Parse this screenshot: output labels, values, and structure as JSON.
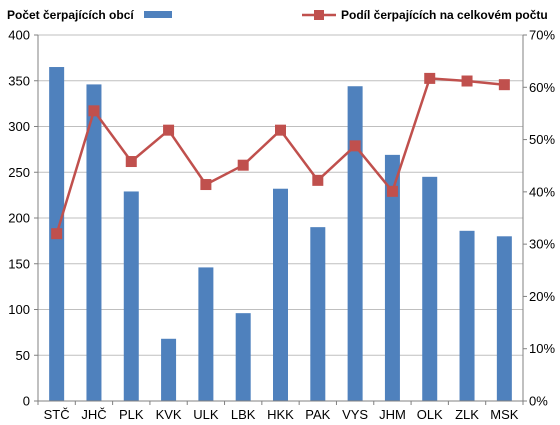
{
  "chart_data": {
    "type": "bar",
    "categories": [
      "STČ",
      "JHČ",
      "PLK",
      "KVK",
      "ULK",
      "LBK",
      "HKK",
      "PAK",
      "VYS",
      "JHM",
      "OLK",
      "ZLK",
      "MSK"
    ],
    "series": [
      {
        "name": "Počet čerpajících obcí",
        "type": "bar",
        "axis": "left",
        "color": "#4f81bd",
        "values": [
          365,
          346,
          229,
          68,
          146,
          96,
          232,
          190,
          344,
          269,
          245,
          186,
          180
        ]
      },
      {
        "name": "Podíl čerpajících na celkovém počtu",
        "type": "line",
        "axis": "right",
        "color": "#c0504d",
        "values": [
          0.32,
          0.555,
          0.458,
          0.518,
          0.414,
          0.451,
          0.518,
          0.422,
          0.488,
          0.401,
          0.617,
          0.612,
          0.605
        ]
      }
    ],
    "y_left": {
      "min": 0,
      "max": 400,
      "ticks": [
        "0",
        "50",
        "100",
        "150",
        "200",
        "250",
        "300",
        "350",
        "400"
      ]
    },
    "y_right": {
      "min": 0,
      "max": 0.7,
      "ticks": [
        "0%",
        "10%",
        "20%",
        "30%",
        "40%",
        "50%",
        "60%",
        "70%"
      ]
    },
    "title": "",
    "xlabel": "",
    "ylabel": "",
    "grid": "horizontal",
    "legend": "top"
  }
}
